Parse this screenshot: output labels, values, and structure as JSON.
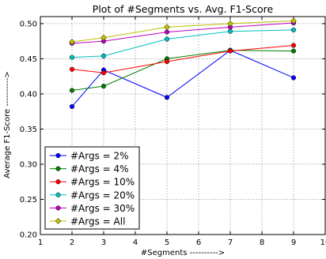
{
  "chart_data": {
    "type": "line",
    "title": "Plot of #Segments vs. Avg. F1-Score",
    "xlabel": "#Segments ---------->",
    "ylabel": "Average F1-Score ---------->",
    "xlim": [
      1,
      10
    ],
    "ylim": [
      0.2,
      0.51
    ],
    "xticks": [
      1,
      2,
      3,
      4,
      5,
      6,
      7,
      8,
      9,
      10
    ],
    "yticks": [
      0.2,
      0.25,
      0.3,
      0.35,
      0.4,
      0.45,
      0.5
    ],
    "xtick_labels": [
      "1",
      "2",
      "3",
      "4",
      "5",
      "6",
      "7",
      "8",
      "9",
      "10"
    ],
    "ytick_labels": [
      "0.20",
      "0.25",
      "0.30",
      "0.35",
      "0.40",
      "0.45",
      "0.50"
    ],
    "grid": true,
    "legend_position": "lower-left",
    "x": [
      2,
      3,
      5,
      7,
      9
    ],
    "series": [
      {
        "name": "#Args = 2%",
        "color": "#0000ff",
        "values": [
          0.382,
          0.434,
          0.395,
          0.462,
          0.423
        ]
      },
      {
        "name": "#Args = 4%",
        "color": "#008000",
        "values": [
          0.405,
          0.411,
          0.45,
          0.462,
          0.461
        ]
      },
      {
        "name": "#Args = 10%",
        "color": "#ff0000",
        "values": [
          0.435,
          0.43,
          0.446,
          0.461,
          0.469
        ]
      },
      {
        "name": "#Args = 20%",
        "color": "#00bfbf",
        "values": [
          0.452,
          0.454,
          0.478,
          0.489,
          0.491
        ]
      },
      {
        "name": "#Args = 30%",
        "color": "#bf00bf",
        "values": [
          0.472,
          0.475,
          0.488,
          0.495,
          0.501
        ]
      },
      {
        "name": "#Args = All",
        "color": "#bfbf00",
        "values": [
          0.474,
          0.48,
          0.495,
          0.5,
          0.504
        ]
      }
    ]
  }
}
